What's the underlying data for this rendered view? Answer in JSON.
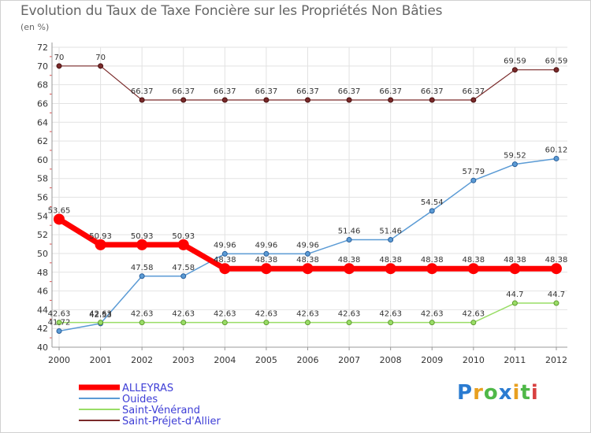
{
  "title": "Evolution du Taux de Taxe Foncière sur les Propriétés Non Bâties",
  "subtitle": "(en %)",
  "brand": {
    "text": "Proxiti",
    "letters": [
      "P",
      "r",
      "o",
      "x",
      "i",
      "t",
      "i"
    ],
    "colors": [
      "#2a7bd1",
      "#e8a020",
      "#4fb848",
      "#2a7bd1",
      "#e8a020",
      "#4fb848",
      "#d84040"
    ]
  },
  "chart_data": {
    "type": "line",
    "title": "Evolution du Taux de Taxe Foncière sur les Propriétés Non Bâties",
    "ylabel": "(en %)",
    "xlabel": "",
    "ylim": [
      40,
      72
    ],
    "yticks": [
      40,
      42,
      44,
      46,
      48,
      50,
      52,
      54,
      56,
      58,
      60,
      62,
      64,
      66,
      68,
      70,
      72
    ],
    "categories": [
      "2000",
      "2001",
      "2002",
      "2003",
      "2004",
      "2005",
      "2006",
      "2007",
      "2008",
      "2009",
      "2010",
      "2011",
      "2012"
    ],
    "grid": true,
    "series": [
      {
        "name": "Saint-Préjet-d'Allier",
        "color": "#7a2a2a",
        "values": [
          70,
          70,
          66.37,
          66.37,
          66.37,
          66.37,
          66.37,
          66.37,
          66.37,
          66.37,
          66.37,
          69.59,
          69.59
        ],
        "labels": [
          "70",
          "70",
          "66.37",
          "66.37",
          "66.37",
          "66.37",
          "66.37",
          "66.37",
          "66.37",
          "66.37",
          "66.37",
          "69.59",
          "69.59"
        ]
      },
      {
        "name": "Ouides",
        "color": "#5b9bd5",
        "values": [
          41.72,
          42.53,
          47.58,
          47.58,
          49.96,
          49.96,
          49.96,
          51.46,
          51.46,
          54.54,
          57.79,
          59.52,
          60.12
        ],
        "labels": [
          "41.72",
          "42.53",
          "47.58",
          "47.58",
          "49.96",
          "49.96",
          "49.96",
          "51.46",
          "51.46",
          "54.54",
          "57.79",
          "59.52",
          "60.12"
        ]
      },
      {
        "name": "Saint-Vénérand",
        "color": "#99dd66",
        "values": [
          42.63,
          42.63,
          42.63,
          42.63,
          42.63,
          42.63,
          42.63,
          42.63,
          42.63,
          42.63,
          42.63,
          44.7,
          44.7
        ],
        "labels": [
          "42.63",
          "42.63",
          "42.63",
          "42.63",
          "42.63",
          "42.63",
          "42.63",
          "42.63",
          "42.63",
          "42.63",
          "42.63",
          "44.7",
          "44.7"
        ]
      },
      {
        "name": "ALLEYRAS",
        "color": "#ff0000",
        "values": [
          53.65,
          50.93,
          50.93,
          50.93,
          48.38,
          48.38,
          48.38,
          48.38,
          48.38,
          48.38,
          48.38,
          48.38,
          48.38
        ],
        "labels": [
          "53.65",
          "50.93",
          "50.93",
          "50.93",
          "48.38",
          "48.38",
          "48.38",
          "48.38",
          "48.38",
          "48.38",
          "48.38",
          "48.38",
          "48.38"
        ]
      }
    ],
    "legend": [
      "ALLEYRAS",
      "Ouides",
      "Saint-Vénérand",
      "Saint-Préjet-d'Allier"
    ],
    "legend_placement": "bottom-left"
  }
}
